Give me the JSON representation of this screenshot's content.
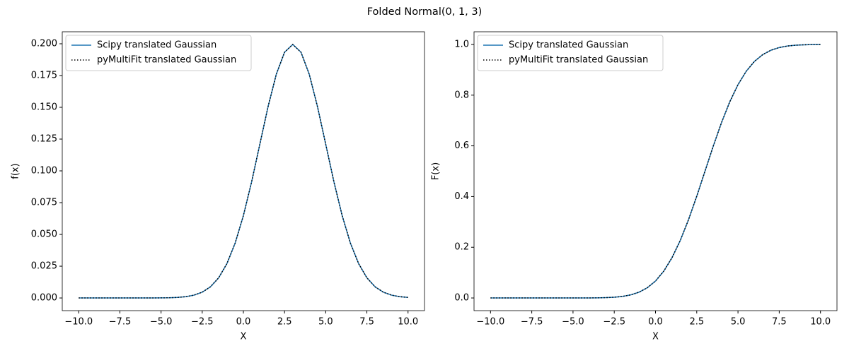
{
  "title": "Folded Normal(0, 1, 3)",
  "chart_data": [
    {
      "type": "line",
      "xlabel": "X",
      "ylabel": "f(x)",
      "legend": "upper left",
      "xlim": [
        -11,
        11
      ],
      "ylim": [
        -0.00997,
        0.20944
      ],
      "xticks": [
        {
          "value": -10,
          "label": "−10.0"
        },
        {
          "value": -7.5,
          "label": "−7.5"
        },
        {
          "value": -5,
          "label": "−5.0"
        },
        {
          "value": -2.5,
          "label": "−2.5"
        },
        {
          "value": 0,
          "label": "0.0"
        },
        {
          "value": 2.5,
          "label": "2.5"
        },
        {
          "value": 5,
          "label": "5.0"
        },
        {
          "value": 7.5,
          "label": "7.5"
        },
        {
          "value": 10,
          "label": "10.0"
        }
      ],
      "yticks": [
        {
          "value": 0,
          "label": "0.000"
        },
        {
          "value": 0.025,
          "label": "0.025"
        },
        {
          "value": 0.05,
          "label": "0.050"
        },
        {
          "value": 0.075,
          "label": "0.075"
        },
        {
          "value": 0.1,
          "label": "0.100"
        },
        {
          "value": 0.125,
          "label": "0.125"
        },
        {
          "value": 0.15,
          "label": "0.150"
        },
        {
          "value": 0.175,
          "label": "0.175"
        },
        {
          "value": 0.2,
          "label": "0.200"
        }
      ],
      "x": [
        -10,
        -9.5,
        -9,
        -8.5,
        -8,
        -7.5,
        -7,
        -6.5,
        -6,
        -5.5,
        -5,
        -4.5,
        -4,
        -3.5,
        -3,
        -2.5,
        -2,
        -1.5,
        -1,
        -0.5,
        0,
        0.5,
        1,
        1.5,
        2,
        2.5,
        3,
        3.5,
        4,
        4.5,
        5,
        5.5,
        6,
        6.5,
        7,
        7.5,
        8,
        8.5,
        9,
        9.5,
        10
      ],
      "series": [
        {
          "name": "Scipy translated Gaussian",
          "color": "#1f77b4",
          "dash": "solid",
          "values": [
            0,
            0,
            0,
            0,
            0,
            0,
            0,
            0,
            1e-05,
            2e-05,
            7e-05,
            0.00018,
            0.00044,
            0.00102,
            0.00222,
            0.00455,
            0.00876,
            0.01588,
            0.027,
            0.04316,
            0.06476,
            0.09133,
            0.12099,
            0.15057,
            0.17603,
            0.19333,
            0.19947,
            0.19333,
            0.17603,
            0.15057,
            0.12099,
            0.09133,
            0.06476,
            0.04316,
            0.027,
            0.01588,
            0.00876,
            0.00455,
            0.00222,
            0.00102,
            0.00044
          ]
        },
        {
          "name": "pyMultiFit translated Gaussian",
          "color": "#000000",
          "dash": "dotted",
          "values": [
            0,
            0,
            0,
            0,
            0,
            0,
            0,
            0,
            1e-05,
            2e-05,
            7e-05,
            0.00018,
            0.00044,
            0.00102,
            0.00222,
            0.00455,
            0.00876,
            0.01588,
            0.027,
            0.04316,
            0.06476,
            0.09133,
            0.12099,
            0.15057,
            0.17603,
            0.19333,
            0.19947,
            0.19333,
            0.17603,
            0.15057,
            0.12099,
            0.09133,
            0.06476,
            0.04316,
            0.027,
            0.01588,
            0.00876,
            0.00455,
            0.00222,
            0.00102,
            0.00044
          ]
        }
      ]
    },
    {
      "type": "line",
      "xlabel": "X",
      "ylabel": "F(x)",
      "legend": "upper left",
      "xlim": [
        -11,
        11
      ],
      "ylim": [
        -0.05,
        1.05
      ],
      "xticks": [
        {
          "value": -10,
          "label": "−10.0"
        },
        {
          "value": -7.5,
          "label": "−7.5"
        },
        {
          "value": -5,
          "label": "−5.0"
        },
        {
          "value": -2.5,
          "label": "−2.5"
        },
        {
          "value": 0,
          "label": "0.0"
        },
        {
          "value": 2.5,
          "label": "2.5"
        },
        {
          "value": 5,
          "label": "5.0"
        },
        {
          "value": 7.5,
          "label": "7.5"
        },
        {
          "value": 10,
          "label": "10.0"
        }
      ],
      "yticks": [
        {
          "value": 0,
          "label": "0.0"
        },
        {
          "value": 0.2,
          "label": "0.2"
        },
        {
          "value": 0.4,
          "label": "0.4"
        },
        {
          "value": 0.6,
          "label": "0.6"
        },
        {
          "value": 0.8,
          "label": "0.8"
        },
        {
          "value": 1,
          "label": "1.0"
        }
      ],
      "x": [
        -10,
        -9.5,
        -9,
        -8.5,
        -8,
        -7.5,
        -7,
        -6.5,
        -6,
        -5.5,
        -5,
        -4.5,
        -4,
        -3.5,
        -3,
        -2.5,
        -2,
        -1.5,
        -1,
        -0.5,
        0,
        0.5,
        1,
        1.5,
        2,
        2.5,
        3,
        3.5,
        4,
        4.5,
        5,
        5.5,
        6,
        6.5,
        7,
        7.5,
        8,
        8.5,
        9,
        9.5,
        10
      ],
      "series": [
        {
          "name": "Scipy translated Gaussian",
          "color": "#1f77b4",
          "dash": "solid",
          "values": [
            0,
            0,
            0,
            0,
            0,
            0,
            0,
            0,
            0,
            1e-05,
            3e-05,
            9e-05,
            0.00023,
            0.00058,
            0.00135,
            0.00298,
            0.00621,
            0.01222,
            0.02275,
            0.04006,
            0.06681,
            0.10565,
            0.15866,
            0.22663,
            0.30854,
            0.40129,
            0.5,
            0.59871,
            0.69146,
            0.77337,
            0.84134,
            0.89435,
            0.93319,
            0.95994,
            0.97725,
            0.98778,
            0.99379,
            0.99702,
            0.99865,
            0.99942,
            0.99977
          ]
        },
        {
          "name": "pyMultiFit translated Gaussian",
          "color": "#000000",
          "dash": "dotted",
          "values": [
            0,
            0,
            0,
            0,
            0,
            0,
            0,
            0,
            0,
            1e-05,
            3e-05,
            9e-05,
            0.00023,
            0.00058,
            0.00135,
            0.00298,
            0.00621,
            0.01222,
            0.02275,
            0.04006,
            0.06681,
            0.10565,
            0.15866,
            0.22663,
            0.30854,
            0.40129,
            0.5,
            0.59871,
            0.69146,
            0.77337,
            0.84134,
            0.89435,
            0.93319,
            0.95994,
            0.97725,
            0.98778,
            0.99379,
            0.99702,
            0.99865,
            0.99942,
            0.99977
          ]
        }
      ]
    }
  ]
}
